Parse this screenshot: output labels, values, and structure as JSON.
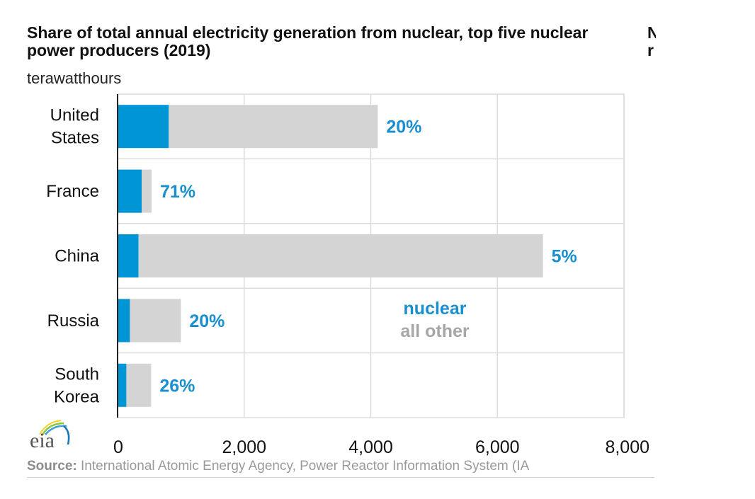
{
  "header": {
    "title": "Share of total annual electricity generation from nuclear, top five nuclear power producers (2019)",
    "units": "terawatthours",
    "adjacent_panel_title_fragment": [
      "N",
      "r"
    ]
  },
  "footer": {
    "source_label": "Source:",
    "source_text": " International Atomic Energy Agency, Power Reactor Information System (IA",
    "logo_text": "eia"
  },
  "colors": {
    "nuclear": "#0096d6",
    "all_other": "#d4d4d4",
    "label_blue": "#1a8fd0",
    "legend_gray": "#a6a6a6",
    "grid": "#dcdcdc"
  },
  "chart_data": {
    "type": "bar",
    "orientation": "horizontal",
    "stacked": true,
    "title": "Share of total annual electricity generation from nuclear, top five nuclear power producers (2019)",
    "xlabel": "terawatthours",
    "ylabel": "",
    "categories": [
      "United States",
      "France",
      "China",
      "Russia",
      "South Korea"
    ],
    "category_lines": [
      [
        "United",
        "States"
      ],
      [
        "France"
      ],
      [
        "China"
      ],
      [
        "Russia"
      ],
      [
        "South",
        "Korea"
      ]
    ],
    "series": [
      {
        "name": "nuclear",
        "values": [
          809,
          382,
          330,
          195,
          139
        ]
      },
      {
        "name": "all other",
        "values": [
          3301,
          155,
          6390,
          805,
          391
        ]
      }
    ],
    "totals": [
      4110,
      537,
      6720,
      1000,
      530
    ],
    "data_labels": [
      "20%",
      "71%",
      "5%",
      "20%",
      "26%"
    ],
    "xlim": [
      0,
      8000
    ],
    "xticks": [
      0,
      2000,
      4000,
      6000,
      8000
    ],
    "xtick_labels": [
      "0",
      "2,000",
      "4,000",
      "6,000",
      "8,000"
    ],
    "grid": true,
    "legend": {
      "entries": [
        "nuclear",
        "all other"
      ],
      "placement": "inside-lower-center"
    }
  }
}
